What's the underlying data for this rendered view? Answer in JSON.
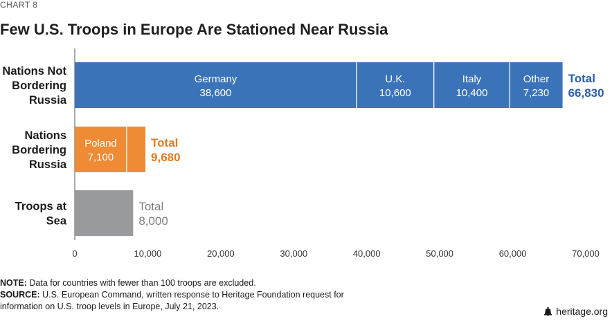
{
  "header": {
    "chart_label": "CHART 8",
    "title": "Few U.S. Troops in Europe Are Stationed Near Russia"
  },
  "chart_data": {
    "type": "bar",
    "orientation": "horizontal",
    "stacked": true,
    "categories": [
      [
        "Nations Not",
        "Bordering",
        "Russia"
      ],
      [
        "Nations",
        "Bordering",
        "Russia"
      ],
      [
        "Troops at",
        "Sea"
      ]
    ],
    "rows": [
      {
        "color": "#3b73b9",
        "total_label": "Total",
        "total_value": "66,830",
        "total_color": "#2a5da8",
        "segments": [
          {
            "name": "Germany",
            "value": 38600,
            "display": "38,600"
          },
          {
            "name": "U.K.",
            "value": 10600,
            "display": "10,600"
          },
          {
            "name": "Italy",
            "value": 10400,
            "display": "10,400"
          },
          {
            "name": "Other",
            "value": 7230,
            "display": "7,230"
          }
        ]
      },
      {
        "color": "#ef8a35",
        "total_label": "Total",
        "total_value": "9,680",
        "total_color": "#e07a22",
        "segments": [
          {
            "name": "Poland",
            "value": 7100,
            "display": "7,100"
          },
          {
            "name": "",
            "value": 2580,
            "display": ""
          }
        ]
      },
      {
        "color": "#999a9d",
        "total_label": "Total",
        "total_value": "8,000",
        "total_color": "#7d7e81",
        "segments": [
          {
            "name": "",
            "value": 8000,
            "display": ""
          }
        ]
      }
    ],
    "xlim": [
      0,
      70000
    ],
    "xticks": [
      0,
      10000,
      20000,
      30000,
      40000,
      50000,
      60000,
      70000
    ],
    "xtick_labels": [
      "0",
      "10,000",
      "20,000",
      "30,000",
      "40,000",
      "50,000",
      "60,000",
      "70,000"
    ],
    "grid": false,
    "xlabel": "",
    "ylabel": ""
  },
  "footer": {
    "note_label": "NOTE:",
    "note_text": "Data for countries with fewer than 100 troops are excluded.",
    "source_label": "SOURCE:",
    "source_text": "U.S. European Command, written response to Heritage Foundation request for information on U.S. troop levels in Europe, July 21, 2023.",
    "brand": "heritage.org"
  }
}
